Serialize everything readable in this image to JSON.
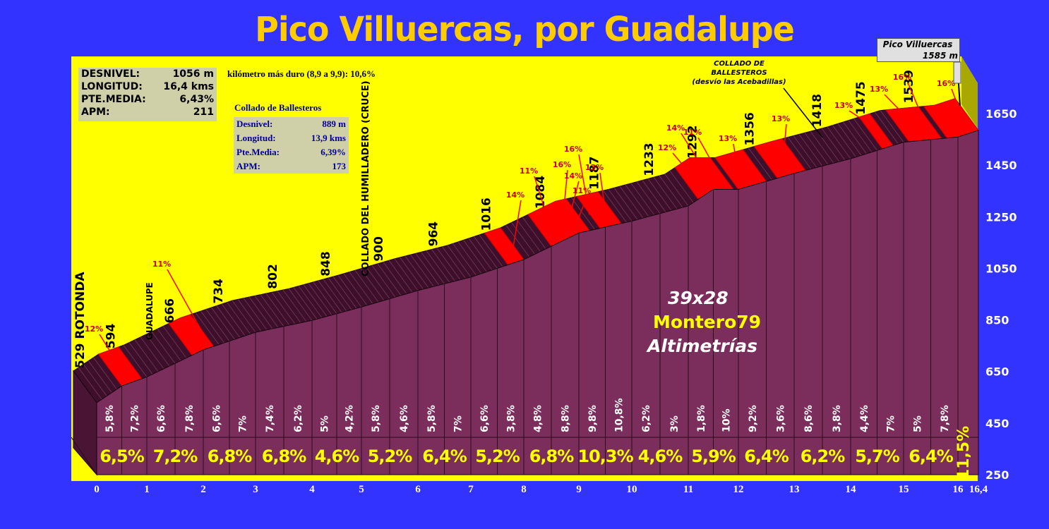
{
  "title": "Pico Villuercas, por Guadalupe",
  "stats": [
    {
      "label": "DESNIVEL:",
      "value": "1056 m"
    },
    {
      "label": "LONGITUD:",
      "value": "16,4 kms"
    },
    {
      "label": "PTE.MEDIA:",
      "value": "6,43%"
    },
    {
      "label": "APM:",
      "value": "211"
    }
  ],
  "hardest_km": "kilómetro más duro (8,9 a 9,9):  10,6%",
  "collado": {
    "title": "Collado de Ballesteros",
    "rows": [
      {
        "label": "Desnivel:",
        "value": "889 m"
      },
      {
        "label": "Longitud:",
        "value": "13,9 kms"
      },
      {
        "label": "Pte.Media:",
        "value": "6,39%"
      },
      {
        "label": "APM:",
        "value": "173"
      }
    ]
  },
  "summit": {
    "name": "Pico Villuercas",
    "alt": "1585 m"
  },
  "ballesteros_label": [
    "COLLADO DE",
    "BALLESTEROS",
    "(desvío las Acebadillas)"
  ],
  "watermark": {
    "line1": "39x28",
    "line2": "Montero79",
    "line3": "Altimetrías"
  },
  "colors": {
    "background": "#3333ff",
    "plot": "#ffff00",
    "profile": "#7b2d5b",
    "steep": "#ff0000",
    "title": "#ffcc00"
  },
  "chart_data": {
    "type": "area",
    "x": [
      0,
      0.5,
      1,
      2,
      3,
      4,
      5,
      6,
      7,
      8,
      9,
      10,
      11,
      11.5,
      12,
      13,
      14,
      15,
      16,
      16.4
    ],
    "y": [
      529,
      594,
      629,
      734,
      802,
      848,
      900,
      964,
      1016,
      1084,
      1187,
      1233,
      1292,
      1356,
      1356,
      1418,
      1475,
      1539,
      1559,
      1585
    ],
    "ylim": [
      250,
      1750
    ],
    "yticks": [
      "250",
      "450",
      "650",
      "850",
      "1050",
      "1250",
      "1450",
      "1650"
    ],
    "xticks": [
      "0",
      "1",
      "2",
      "3",
      "4",
      "5",
      "6",
      "7",
      "8",
      "9",
      "10",
      "11",
      "12",
      "13",
      "14",
      "15",
      "16",
      "16,4"
    ],
    "xtick_values": [
      0,
      1,
      2,
      3,
      4,
      5,
      6,
      7,
      8,
      9,
      10,
      11,
      12,
      13,
      14,
      15,
      16,
      16.4
    ],
    "km_avg": [
      "6,5%",
      "7,2%",
      "6,8%",
      "6,8%",
      "4,6%",
      "5,2%",
      "6,4%",
      "5,2%",
      "6,8%",
      "10,3%",
      "4,6%",
      "5,9%",
      "6,4%",
      "6,2%",
      "5,7%",
      "6,4%",
      "11,5%"
    ],
    "half_km": [
      "5,8%",
      "7,2%",
      "6,6%",
      "7,8%",
      "6,6%",
      "7%",
      "7,4%",
      "6,2%",
      "5%",
      "4,2%",
      "5,8%",
      "4,6%",
      "5,8%",
      "7%",
      "6,6%",
      "3,8%",
      "4,8%",
      "8,8%",
      "9,8%",
      "10,8%",
      "6,2%",
      "3%",
      "1,8%",
      "10%",
      "9,2%",
      "3,6%",
      "8,6%",
      "3,8%",
      "4,4%",
      "7%",
      "5%",
      "7,8%"
    ],
    "alt_labels": [
      {
        "x": 0.5,
        "text": "594"
      },
      {
        "x": 1.6,
        "text": "666"
      },
      {
        "x": 2.5,
        "text": "734"
      },
      {
        "x": 3.5,
        "text": "802"
      },
      {
        "x": 4.5,
        "text": "848"
      },
      {
        "x": 5.5,
        "text": "900"
      },
      {
        "x": 6.5,
        "text": "964"
      },
      {
        "x": 7.5,
        "text": "1016"
      },
      {
        "x": 8.5,
        "text": "1084"
      },
      {
        "x": 9.5,
        "text": "1187"
      },
      {
        "x": 10.5,
        "text": "1233"
      },
      {
        "x": 11.3,
        "text": "1292"
      },
      {
        "x": 12.4,
        "text": "1356"
      },
      {
        "x": 13.6,
        "text": "1418"
      },
      {
        "x": 14.4,
        "text": "1475"
      },
      {
        "x": 15.3,
        "text": "1539"
      }
    ],
    "places": [
      {
        "x": 0,
        "text": "529  ROTONDA"
      },
      {
        "x": 1,
        "text": "GUADALUPE"
      },
      {
        "x": 5,
        "text": "COLLADO DEL HUMILLADERO (CRUCE)"
      }
    ],
    "steep_sections": [
      {
        "x1": 0.5,
        "x2": 0.9
      },
      {
        "x1": 1.8,
        "x2": 2.2
      },
      {
        "x1": 7.7,
        "x2": 8.0
      },
      {
        "x1": 8.5,
        "x2": 9.2
      },
      {
        "x1": 9.4,
        "x2": 9.8
      },
      {
        "x1": 11.2,
        "x2": 11.9
      },
      {
        "x1": 12.0,
        "x2": 12.5
      },
      {
        "x1": 12.7,
        "x2": 13.2
      },
      {
        "x1": 14.6,
        "x2": 14.8
      },
      {
        "x1": 15.1,
        "x2": 15.7
      },
      {
        "x1": 15.8,
        "x2": 16.4
      }
    ],
    "steep_labels": [
      {
        "x": 0.5,
        "text": "12%",
        "lx": 133,
        "ly": 470
      },
      {
        "x": 2.0,
        "text": "11%",
        "lx": 229,
        "ly": 378
      },
      {
        "x": 7.8,
        "text": "14%",
        "lx": 730,
        "ly": 280
      },
      {
        "x": 8.5,
        "text": "11%",
        "lx": 749,
        "ly": 246
      },
      {
        "x": 8.7,
        "text": "16%",
        "lx": 796,
        "ly": 237
      },
      {
        "x": 8.8,
        "text": "14%",
        "lx": 812,
        "ly": 253
      },
      {
        "x": 9.0,
        "text": "11%",
        "lx": 824,
        "ly": 274
      },
      {
        "x": 9.2,
        "text": "16%",
        "lx": 812,
        "ly": 215
      },
      {
        "x": 9.5,
        "text": "13%",
        "lx": 842,
        "ly": 241
      },
      {
        "x": 11.2,
        "text": "12%",
        "lx": 945,
        "ly": 213
      },
      {
        "x": 11.4,
        "text": "14%",
        "lx": 957,
        "ly": 185
      },
      {
        "x": 11.6,
        "text": "11%",
        "lx": 981,
        "ly": 191
      },
      {
        "x": 12.0,
        "text": "13%",
        "lx": 1031,
        "ly": 200
      },
      {
        "x": 12.8,
        "text": "13%",
        "lx": 1106,
        "ly": 172
      },
      {
        "x": 14.6,
        "text": "13%",
        "lx": 1195,
        "ly": 153
      },
      {
        "x": 15.2,
        "text": "13%",
        "lx": 1245,
        "ly": 130
      },
      {
        "x": 15.4,
        "text": "16%",
        "lx": 1278,
        "ly": 113
      },
      {
        "x": 16.1,
        "text": "16%",
        "lx": 1340,
        "ly": 122
      }
    ]
  }
}
